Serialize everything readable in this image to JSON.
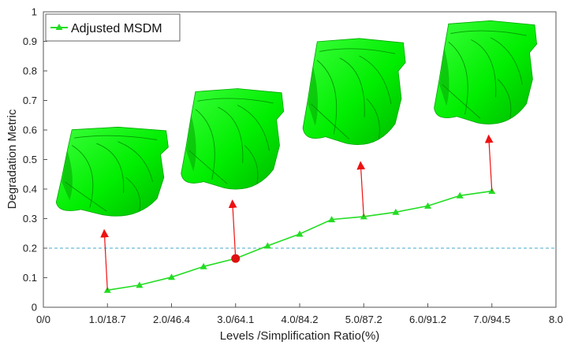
{
  "chart_data": {
    "type": "line",
    "xlabel": "Levels /Simplification Ratio(%)",
    "ylabel": "Degradation Metric",
    "xlim": [
      0,
      8
    ],
    "ylim": [
      0,
      1
    ],
    "x_ticks": [
      0,
      1,
      2,
      3,
      4,
      5,
      6,
      7,
      8
    ],
    "x_tick_labels": [
      "0/0",
      "1.0/18.7",
      "2.0/46.4",
      "3.0/64.1",
      "4.0/84.2",
      "5.0/87.2",
      "6.0/91.2",
      "7.0/94.5",
      "8.0"
    ],
    "y_ticks": [
      0,
      0.1,
      0.2,
      0.3,
      0.4,
      0.5,
      0.6,
      0.7,
      0.8,
      0.9,
      1
    ],
    "y_tick_labels": [
      "0",
      "0.1",
      "0.2",
      "0.3",
      "0.4",
      "0.5",
      "0.6",
      "0.7",
      "0.8",
      "0.9",
      "1"
    ],
    "series": [
      {
        "name": "Adjusted MSDM",
        "color": "#22dd22",
        "marker": "triangle",
        "x": [
          1.0,
          1.5,
          2.0,
          2.5,
          3.0,
          3.5,
          4.0,
          4.5,
          5.0,
          5.5,
          6.0,
          6.5,
          7.0
        ],
        "y": [
          0.058,
          0.075,
          0.102,
          0.138,
          0.165,
          0.208,
          0.248,
          0.297,
          0.307,
          0.322,
          0.343,
          0.378,
          0.393
        ]
      }
    ],
    "threshold_line": {
      "y": 0.2,
      "color": "#44aacc",
      "style": "dashed"
    },
    "highlight_point": {
      "x": 3.0,
      "y": 0.165,
      "color": "#dd1111"
    },
    "annotation_arrows": [
      {
        "from": [
          1.0,
          0.058
        ],
        "to": [
          0.95,
          0.27
        ]
      },
      {
        "from": [
          3.0,
          0.165
        ],
        "to": [
          2.95,
          0.37
        ]
      },
      {
        "from": [
          5.0,
          0.307
        ],
        "to": [
          4.95,
          0.5
        ]
      },
      {
        "from": [
          7.0,
          0.393
        ],
        "to": [
          6.95,
          0.59
        ]
      }
    ],
    "mesh_thumbnails": [
      {
        "name": "mesh-level-1",
        "x_range": [
          0.2,
          1.95
        ],
        "y_range": [
          0.3,
          0.61
        ],
        "color": "#00f000"
      },
      {
        "name": "mesh-level-3",
        "x_range": [
          2.15,
          3.75
        ],
        "y_range": [
          0.39,
          0.74
        ],
        "color": "#00f000"
      },
      {
        "name": "mesh-level-5",
        "x_range": [
          4.05,
          5.65
        ],
        "y_range": [
          0.54,
          0.91
        ],
        "color": "#00f000"
      },
      {
        "name": "mesh-level-7",
        "x_range": [
          6.1,
          7.7
        ],
        "y_range": [
          0.61,
          0.97
        ],
        "color": "#00f000"
      }
    ],
    "legend": {
      "position": "top-left"
    },
    "grid": false
  }
}
